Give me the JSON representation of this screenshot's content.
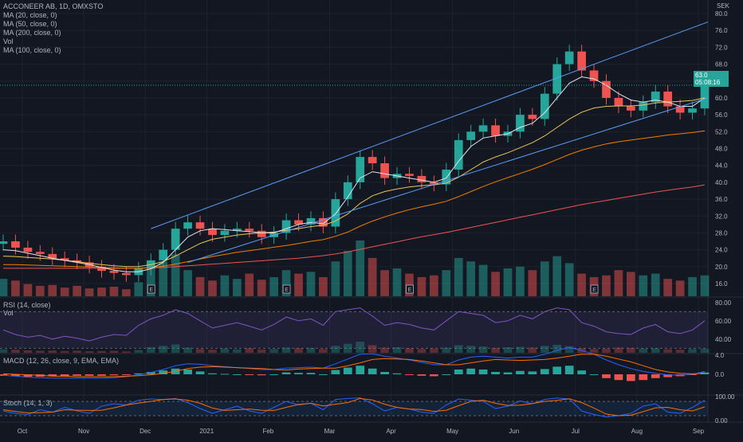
{
  "chart_data": {
    "type": "candlestick",
    "symbol_line": "ACCONEER AB, 1D, OMXSTO",
    "currency": "SEK",
    "overlays": [
      {
        "label": "MA (20, close, 0)",
        "color": "#e0e3eb"
      },
      {
        "label": "MA (50, close, 0)",
        "color": "#e8c55c"
      },
      {
        "label": "MA (200, close, 0)",
        "color": "#ef5350"
      },
      {
        "label": "Vol",
        "color": "#b2b5be"
      },
      {
        "label": "MA (100, close, 0)",
        "color": "#f57c00"
      }
    ],
    "last_price": "63.0",
    "countdown": "05:08:16",
    "price_ticks": [
      "80.0",
      "76.0",
      "72.0",
      "68.0",
      "64.0",
      "60.0",
      "56.0",
      "52.0",
      "48.0",
      "44.0",
      "40.0",
      "36.0",
      "32.0",
      "28.0",
      "24.0",
      "20.0",
      "16.0"
    ],
    "x_labels": [
      "Oct",
      "Nov",
      "Dec",
      "2021",
      "Feb",
      "Mar",
      "Apr",
      "May",
      "Jun",
      "Jul",
      "Aug",
      "Sep"
    ],
    "earnings_marker": "E",
    "closes": [
      26.0,
      24.5,
      23.5,
      23.0,
      22.0,
      21.5,
      21.0,
      20.0,
      19.0,
      18.5,
      18.0,
      19.5,
      21.5,
      24.0,
      29.0,
      30.5,
      29.0,
      27.5,
      28.5,
      29.0,
      28.5,
      27.0,
      28.0,
      31.0,
      30.0,
      31.5,
      29.5,
      36.0,
      40.0,
      46.0,
      44.5,
      41.0,
      42.0,
      41.5,
      40.0,
      39.5,
      43.0,
      50.0,
      52.0,
      53.5,
      51.0,
      52.0,
      56.0,
      55.0,
      61.0,
      68.0,
      71.0,
      66.5,
      64.0,
      60.0,
      58.0,
      57.0,
      59.0,
      61.5,
      58.0,
      56.5,
      57.5,
      63.0
    ],
    "ma20": [
      24.0,
      23.8,
      23.2,
      22.6,
      22.0,
      21.5,
      21.0,
      20.5,
      19.8,
      19.2,
      18.8,
      18.8,
      19.5,
      21.0,
      24.0,
      27.0,
      28.5,
      29.0,
      28.8,
      28.5,
      28.3,
      28.0,
      28.0,
      29.0,
      30.0,
      30.5,
      30.2,
      32.5,
      36.5,
      41.0,
      42.5,
      42.0,
      41.5,
      41.0,
      40.5,
      40.0,
      41.0,
      45.0,
      48.5,
      50.5,
      51.0,
      51.5,
      53.0,
      54.0,
      56.5,
      60.0,
      63.5,
      65.0,
      64.5,
      63.0,
      61.0,
      59.5,
      59.0,
      59.5,
      59.0,
      58.0,
      58.0,
      60.0
    ],
    "ma50": [
      22.5,
      22.4,
      22.2,
      22.0,
      21.8,
      21.5,
      21.2,
      20.8,
      20.5,
      20.2,
      20.0,
      20.0,
      20.5,
      21.2,
      22.5,
      24.0,
      25.5,
      26.5,
      27.0,
      27.5,
      27.8,
      28.0,
      28.2,
      28.6,
      29.0,
      29.5,
      29.8,
      30.8,
      32.5,
      35.0,
      36.8,
      37.8,
      38.4,
      38.9,
      39.2,
      39.4,
      39.8,
      41.2,
      43.0,
      44.8,
      46.0,
      47.0,
      48.2,
      49.4,
      51.0,
      53.0,
      55.0,
      56.6,
      57.6,
      58.0,
      58.1,
      58.1,
      58.3,
      58.8,
      59.0,
      59.2,
      59.4,
      60.0
    ],
    "ma100": [
      20.5,
      20.5,
      20.4,
      20.3,
      20.2,
      20.1,
      20.0,
      19.9,
      19.8,
      19.7,
      19.6,
      19.6,
      19.8,
      20.1,
      20.6,
      21.2,
      21.8,
      22.4,
      22.9,
      23.4,
      23.8,
      24.2,
      24.6,
      25.0,
      25.5,
      26.0,
      26.4,
      27.2,
      28.2,
      29.6,
      30.8,
      31.8,
      32.7,
      33.5,
      34.2,
      34.8,
      35.5,
      36.6,
      37.8,
      39.0,
      40.1,
      41.1,
      42.1,
      43.1,
      44.2,
      45.4,
      46.6,
      47.6,
      48.4,
      49.1,
      49.6,
      50.0,
      50.4,
      50.8,
      51.2,
      51.5,
      51.8,
      52.2
    ],
    "ma200": [
      19.6,
      19.6,
      19.6,
      19.6,
      19.6,
      19.6,
      19.6,
      19.6,
      19.6,
      19.6,
      19.6,
      19.6,
      19.7,
      19.8,
      20.0,
      20.2,
      20.4,
      20.6,
      20.8,
      21.0,
      21.2,
      21.4,
      21.6,
      21.8,
      22.0,
      22.3,
      22.6,
      23.0,
      23.5,
      24.1,
      24.7,
      25.3,
      25.9,
      26.5,
      27.1,
      27.6,
      28.1,
      28.7,
      29.3,
      29.9,
      30.5,
      31.1,
      31.7,
      32.3,
      32.9,
      33.5,
      34.1,
      34.7,
      35.2,
      35.7,
      36.2,
      36.7,
      37.2,
      37.7,
      38.1,
      38.5,
      38.9,
      39.4
    ],
    "channel": {
      "upper_start": [
        12,
        29.0
      ],
      "upper_end": [
        57,
        78.0
      ],
      "lower_start": [
        15,
        21.0
      ],
      "lower_end": [
        57,
        60.0
      ]
    },
    "rsi": {
      "label": "RSI (14, close)",
      "sub_label": "Vol",
      "ticks": [
        "80.00",
        "60.00",
        "40.00"
      ],
      "bands": [
        70,
        30
      ],
      "values": [
        50,
        45,
        42,
        44,
        40,
        43,
        41,
        38,
        42,
        45,
        44,
        55,
        62,
        66,
        72,
        68,
        60,
        52,
        55,
        58,
        54,
        50,
        56,
        64,
        60,
        62,
        55,
        70,
        72,
        74,
        65,
        55,
        58,
        56,
        52,
        50,
        60,
        70,
        68,
        66,
        58,
        60,
        66,
        62,
        70,
        74,
        72,
        58,
        54,
        48,
        46,
        45,
        52,
        56,
        48,
        46,
        50,
        60
      ]
    },
    "macd": {
      "label": "MACD (12, 26, close, 9, EMA, EMA)",
      "ticks": [
        "4.0",
        "0.0"
      ],
      "hist": [
        -0.3,
        -0.4,
        -0.5,
        -0.5,
        -0.4,
        -0.4,
        -0.3,
        -0.3,
        -0.3,
        -0.2,
        -0.1,
        0.2,
        0.5,
        0.8,
        1.2,
        1.0,
        0.6,
        0.2,
        0.1,
        0.0,
        -0.1,
        -0.2,
        0.0,
        0.4,
        0.3,
        0.3,
        0.0,
        0.9,
        1.4,
        1.8,
        1.2,
        0.5,
        0.2,
        -0.1,
        -0.3,
        -0.4,
        0.0,
        1.0,
        1.2,
        1.0,
        0.5,
        0.4,
        0.7,
        0.6,
        1.1,
        1.6,
        1.8,
        0.8,
        0.0,
        -0.8,
        -1.2,
        -1.4,
        -1.2,
        -0.8,
        -0.6,
        -0.4,
        -0.1,
        0.4
      ],
      "macd": [
        -0.2,
        -0.4,
        -0.6,
        -0.7,
        -0.8,
        -0.8,
        -0.8,
        -0.8,
        -0.8,
        -0.7,
        -0.5,
        -0.1,
        0.4,
        1.0,
        1.8,
        2.2,
        2.1,
        1.8,
        1.6,
        1.4,
        1.2,
        1.0,
        1.0,
        1.3,
        1.4,
        1.5,
        1.3,
        2.2,
        3.2,
        4.2,
        4.3,
        3.8,
        3.4,
        3.0,
        2.5,
        2.0,
        2.0,
        3.0,
        3.6,
        3.8,
        3.6,
        3.4,
        3.6,
        3.6,
        4.2,
        5.0,
        5.6,
        5.0,
        4.2,
        3.0,
        2.0,
        1.2,
        0.6,
        0.2,
        -0.1,
        -0.2,
        0.0,
        0.6
      ],
      "signal": [
        0.1,
        -0.0,
        -0.1,
        -0.2,
        -0.4,
        -0.4,
        -0.5,
        -0.5,
        -0.5,
        -0.5,
        -0.4,
        -0.3,
        -0.1,
        0.2,
        0.6,
        1.2,
        1.5,
        1.6,
        1.5,
        1.4,
        1.3,
        1.2,
        1.0,
        0.9,
        1.1,
        1.2,
        1.3,
        1.3,
        1.8,
        2.4,
        3.1,
        3.3,
        3.2,
        3.1,
        2.8,
        2.4,
        2.0,
        2.0,
        2.4,
        2.8,
        3.1,
        3.0,
        2.9,
        3.0,
        3.1,
        3.4,
        3.8,
        4.2,
        4.2,
        3.8,
        3.2,
        2.6,
        1.8,
        1.0,
        0.5,
        0.2,
        0.1,
        0.2
      ]
    },
    "stoch": {
      "label": "Stoch (14, 1, 3)",
      "ticks": [
        "100.00",
        "0.00"
      ],
      "bands": [
        80,
        20
      ],
      "k": [
        40,
        30,
        25,
        45,
        35,
        55,
        40,
        30,
        60,
        70,
        65,
        85,
        90,
        88,
        92,
        75,
        50,
        30,
        45,
        60,
        40,
        30,
        55,
        80,
        65,
        72,
        45,
        88,
        92,
        95,
        70,
        40,
        55,
        48,
        35,
        30,
        65,
        90,
        85,
        80,
        50,
        60,
        82,
        70,
        88,
        94,
        90,
        40,
        25,
        15,
        20,
        30,
        60,
        70,
        35,
        30,
        55,
        85
      ],
      "d": [
        45,
        38,
        32,
        33,
        35,
        45,
        43,
        42,
        43,
        53,
        65,
        73,
        80,
        88,
        90,
        85,
        72,
        52,
        42,
        45,
        48,
        43,
        42,
        55,
        67,
        72,
        61,
        68,
        75,
        92,
        86,
        68,
        55,
        48,
        46,
        38,
        43,
        62,
        80,
        85,
        72,
        63,
        64,
        71,
        80,
        84,
        91,
        75,
        52,
        27,
        20,
        22,
        37,
        53,
        55,
        45,
        40,
        57
      ]
    },
    "volume": [
      20,
      18,
      14,
      12,
      13,
      10,
      12,
      9,
      10,
      11,
      8,
      16,
      32,
      40,
      48,
      30,
      22,
      18,
      24,
      20,
      26,
      19,
      22,
      30,
      26,
      28,
      22,
      40,
      52,
      64,
      44,
      30,
      32,
      26,
      22,
      24,
      30,
      44,
      40,
      36,
      28,
      32,
      34,
      30,
      40,
      46,
      38,
      26,
      22,
      24,
      30,
      28,
      24,
      26,
      20,
      18,
      22,
      24
    ]
  }
}
